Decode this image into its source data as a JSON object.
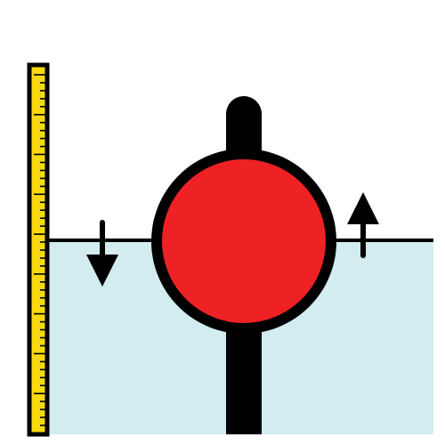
{
  "diagram": {
    "subject": "float-level-gauge",
    "colors": {
      "background": "#ffffff",
      "water": "#d2ecef",
      "outline": "#000000",
      "float_ball": "#ee2125",
      "ruler_fill": "#f9d90f"
    },
    "ruler": {
      "scale_divisions": 44,
      "major_every": 5
    },
    "arrows": [
      {
        "name": "down-arrow",
        "direction": "down"
      },
      {
        "name": "up-arrow",
        "direction": "up"
      }
    ],
    "icons": [
      "ruler-icon",
      "float-ball-icon",
      "down-arrow-icon",
      "up-arrow-icon"
    ]
  }
}
